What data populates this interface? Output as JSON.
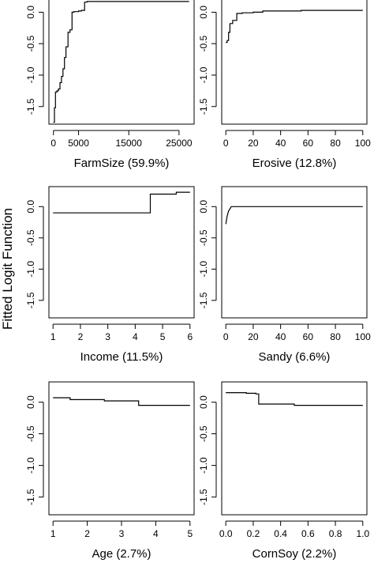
{
  "shared_ylabel": "Fitted Logit Function",
  "chart_data": [
    {
      "type": "line",
      "xlabel": "FarmSize  (59.9%)",
      "xticks": [
        0,
        5000,
        15000,
        25000
      ],
      "xtick_labels": [
        "0",
        "5000",
        "15000",
        "25000"
      ],
      "yticks": [
        0.0,
        -0.5,
        -1.0,
        -1.5
      ],
      "ytick_labels": [
        "0.0",
        "-0.5",
        "-1.0",
        "-1.5"
      ],
      "xlim": [
        -900,
        28000
      ],
      "ylim": [
        -1.78,
        0.32
      ],
      "series": [
        {
          "x": [
            0,
            200,
            400,
            700,
            1000,
            1300,
            1600,
            1900,
            2200,
            2500,
            2900,
            3300,
            3700,
            4100,
            4500,
            5000,
            5600,
            6200,
            6700,
            27000
          ],
          "y": [
            -1.75,
            -1.52,
            -1.27,
            -1.25,
            -1.22,
            -1.12,
            -1.02,
            -0.9,
            -0.72,
            -0.55,
            -0.32,
            -0.28,
            0.0,
            0.01,
            0.01,
            0.02,
            0.03,
            0.16,
            0.17,
            0.17
          ],
          "step": true
        }
      ]
    },
    {
      "type": "line",
      "xlabel": "Erosive  (12.8%)",
      "xticks": [
        0,
        20,
        40,
        60,
        80,
        100
      ],
      "xtick_labels": [
        "0",
        "20",
        "40",
        "60",
        "80",
        "100"
      ],
      "yticks": [
        0.0,
        -0.5,
        -1.0,
        -1.5
      ],
      "ytick_labels": [
        "0.0",
        "-0.5",
        "-1.0",
        "-1.5"
      ],
      "xlim": [
        -3,
        103
      ],
      "ylim": [
        -1.78,
        0.32
      ],
      "series": [
        {
          "x": [
            0,
            1,
            2,
            3,
            5,
            8,
            12,
            20,
            27,
            40,
            55,
            70,
            100
          ],
          "y": [
            -0.48,
            -0.45,
            -0.32,
            -0.18,
            -0.13,
            -0.02,
            -0.01,
            0.0,
            0.02,
            0.02,
            0.03,
            0.03,
            0.03
          ],
          "step": true
        }
      ]
    },
    {
      "type": "line",
      "xlabel": "Income  (11.5%)",
      "xticks": [
        1,
        2,
        3,
        4,
        5,
        6
      ],
      "xtick_labels": [
        "1",
        "2",
        "3",
        "4",
        "5",
        "6"
      ],
      "yticks": [
        0.0,
        -0.5,
        -1.0,
        -1.5
      ],
      "ytick_labels": [
        "0.0",
        "-0.5",
        "-1.0",
        "-1.5"
      ],
      "xlim": [
        0.85,
        6.15
      ],
      "ylim": [
        -1.78,
        0.32
      ],
      "series": [
        {
          "x": [
            1,
            4.45,
            4.55,
            5.5,
            6
          ],
          "y": [
            -0.1,
            -0.1,
            0.2,
            0.23,
            0.23
          ],
          "step": true
        }
      ]
    },
    {
      "type": "line",
      "xlabel": "Sandy  (6.6%)",
      "xticks": [
        0,
        20,
        40,
        60,
        80,
        100
      ],
      "xtick_labels": [
        "0",
        "20",
        "40",
        "60",
        "80",
        "100"
      ],
      "yticks": [
        0.0,
        -0.5,
        -1.0,
        -1.5
      ],
      "ytick_labels": [
        "0.0",
        "-0.5",
        "-1.0",
        "-1.5"
      ],
      "xlim": [
        -3,
        103
      ],
      "ylim": [
        -1.78,
        0.32
      ],
      "series": [
        {
          "x": [
            0,
            1,
            2,
            4,
            100
          ],
          "y": [
            -0.28,
            -0.15,
            -0.07,
            0.0,
            0.0
          ],
          "step": false
        }
      ]
    },
    {
      "type": "line",
      "xlabel": "Age  (2.7%)",
      "xticks": [
        1,
        2,
        3,
        4,
        5
      ],
      "xtick_labels": [
        "1",
        "2",
        "3",
        "4",
        "5"
      ],
      "yticks": [
        0.0,
        -0.5,
        -1.0,
        -1.5
      ],
      "ytick_labels": [
        "0.0",
        "-0.5",
        "-1.0",
        "-1.5"
      ],
      "xlim": [
        0.88,
        5.12
      ],
      "ylim": [
        -1.78,
        0.32
      ],
      "series": [
        {
          "x": [
            1,
            1.5,
            2.5,
            3.5,
            5
          ],
          "y": [
            0.07,
            0.04,
            0.02,
            -0.05,
            -0.05
          ],
          "step": true
        }
      ]
    },
    {
      "type": "line",
      "xlabel": "CornSoy  (2.2%)",
      "xticks": [
        0.0,
        0.2,
        0.4,
        0.6,
        0.8,
        1.0
      ],
      "xtick_labels": [
        "0.0",
        "0.2",
        "0.4",
        "0.6",
        "0.8",
        "1.0"
      ],
      "yticks": [
        0.0,
        -0.5,
        -1.0,
        -1.5
      ],
      "ytick_labels": [
        "0.0",
        "-0.5",
        "-1.0",
        "-1.5"
      ],
      "xlim": [
        -0.03,
        1.03
      ],
      "ylim": [
        -1.78,
        0.32
      ],
      "series": [
        {
          "x": [
            0,
            0.15,
            0.22,
            0.24,
            0.47,
            0.5,
            1.0
          ],
          "y": [
            0.15,
            0.14,
            0.13,
            -0.03,
            -0.03,
            -0.05,
            -0.05
          ],
          "step": true
        }
      ]
    }
  ]
}
